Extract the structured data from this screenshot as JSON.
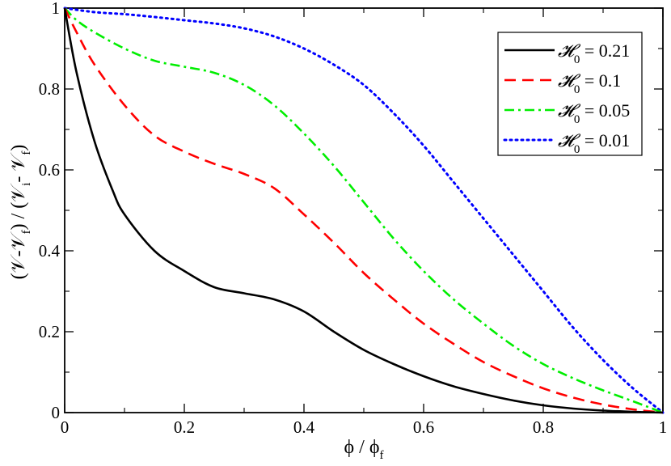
{
  "chart_data": {
    "type": "line",
    "xlabel": "ϕ / ϕ",
    "xlabel_sub": "f",
    "ylabel_parts": [
      "(𝒱-𝒱",
      "f",
      ") / (𝒱",
      "i",
      "- 𝒱",
      "f",
      ")"
    ],
    "xlim": [
      0,
      1
    ],
    "ylim": [
      0,
      1
    ],
    "x_ticks": [
      0,
      0.2,
      0.4,
      0.6,
      0.8,
      1
    ],
    "x_tick_labels": [
      "0",
      "0.2",
      "0.4",
      "0.6",
      "0.8",
      "1"
    ],
    "y_ticks": [
      0,
      0.2,
      0.4,
      0.6,
      0.8,
      1
    ],
    "y_tick_labels": [
      "0",
      "0.2",
      "0.4",
      "0.6",
      "0.8",
      "1"
    ],
    "grid": false,
    "legend_position": "top-right",
    "series": [
      {
        "name": "0.21",
        "legend_symbol": "𝓗",
        "legend_sub": "0",
        "legend_text": "= 0.21",
        "color": "#000000",
        "style": "solid",
        "x": [
          0,
          0.02,
          0.05,
          0.08,
          0.1,
          0.15,
          0.2,
          0.25,
          0.3,
          0.35,
          0.4,
          0.45,
          0.5,
          0.55,
          0.6,
          0.65,
          0.7,
          0.75,
          0.8,
          0.85,
          0.9,
          0.95,
          1.0
        ],
        "y": [
          1.0,
          0.84,
          0.67,
          0.55,
          0.49,
          0.4,
          0.35,
          0.31,
          0.295,
          0.28,
          0.25,
          0.2,
          0.155,
          0.12,
          0.09,
          0.065,
          0.046,
          0.03,
          0.018,
          0.01,
          0.005,
          0.002,
          0.0
        ]
      },
      {
        "name": "0.1",
        "legend_symbol": "𝓗",
        "legend_sub": "0",
        "legend_text": "= 0.1",
        "color": "#ff0000",
        "style": "dashed",
        "x": [
          0,
          0.02,
          0.05,
          0.1,
          0.15,
          0.2,
          0.25,
          0.3,
          0.35,
          0.4,
          0.45,
          0.5,
          0.55,
          0.6,
          0.65,
          0.7,
          0.75,
          0.8,
          0.85,
          0.9,
          0.95,
          1.0
        ],
        "y": [
          1.0,
          0.94,
          0.86,
          0.76,
          0.685,
          0.645,
          0.615,
          0.59,
          0.555,
          0.49,
          0.42,
          0.345,
          0.28,
          0.22,
          0.17,
          0.125,
          0.09,
          0.06,
          0.037,
          0.02,
          0.008,
          0.0
        ]
      },
      {
        "name": "0.05",
        "legend_symbol": "𝓗",
        "legend_sub": "0",
        "legend_text": "= 0.05",
        "color": "#00ee00",
        "style": "dashdot",
        "x": [
          0,
          0.02,
          0.05,
          0.1,
          0.15,
          0.2,
          0.25,
          0.3,
          0.35,
          0.4,
          0.45,
          0.5,
          0.55,
          0.6,
          0.65,
          0.7,
          0.75,
          0.8,
          0.85,
          0.9,
          0.95,
          1.0
        ],
        "y": [
          1.0,
          0.97,
          0.94,
          0.9,
          0.87,
          0.855,
          0.84,
          0.81,
          0.76,
          0.69,
          0.61,
          0.52,
          0.43,
          0.35,
          0.28,
          0.22,
          0.165,
          0.12,
          0.085,
          0.055,
          0.028,
          0.0
        ]
      },
      {
        "name": "0.01",
        "legend_symbol": "𝓗",
        "legend_sub": "0",
        "legend_text": "= 0.01",
        "color": "#0000ff",
        "style": "dotted",
        "x": [
          0,
          0.05,
          0.1,
          0.15,
          0.2,
          0.25,
          0.3,
          0.35,
          0.4,
          0.45,
          0.5,
          0.55,
          0.6,
          0.65,
          0.7,
          0.75,
          0.8,
          0.85,
          0.9,
          0.95,
          1.0
        ],
        "y": [
          1.0,
          0.99,
          0.985,
          0.978,
          0.97,
          0.962,
          0.95,
          0.93,
          0.9,
          0.86,
          0.81,
          0.74,
          0.66,
          0.57,
          0.48,
          0.39,
          0.3,
          0.21,
          0.13,
          0.06,
          0.0
        ]
      }
    ]
  }
}
